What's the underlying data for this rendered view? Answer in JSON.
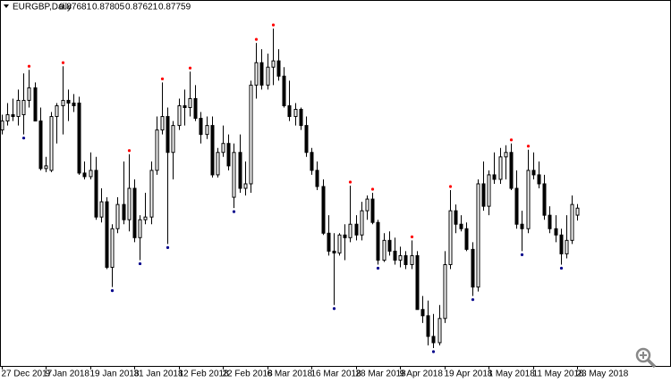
{
  "chart_data": {
    "type": "candlestick",
    "symbol": "EURGBP,Daily",
    "up_color": "#ffffff",
    "down_color": "#000000",
    "outline_color": "#000000",
    "fractals": true,
    "fractal_up_color": "#ff0000",
    "fractal_down_color": "#00008b",
    "categories": [
      "27 Dec 2017",
      null,
      null,
      null,
      null,
      null,
      null,
      null,
      "9 Jan 2018",
      null,
      null,
      null,
      null,
      null,
      null,
      null,
      "19 Jan 2018",
      null,
      null,
      null,
      null,
      null,
      null,
      null,
      "31 Jan 2018",
      null,
      null,
      null,
      null,
      null,
      null,
      null,
      "12 Feb 2018",
      null,
      null,
      null,
      null,
      null,
      null,
      null,
      "22 Feb 2018",
      null,
      null,
      null,
      null,
      null,
      null,
      null,
      "6 Mar 2018",
      null,
      null,
      null,
      null,
      null,
      null,
      null,
      "16 Mar 2018",
      null,
      null,
      null,
      null,
      null,
      null,
      null,
      "28 Mar 2018",
      null,
      null,
      null,
      null,
      null,
      null,
      null,
      "9 Apr 2018",
      null,
      null,
      null,
      null,
      null,
      null,
      null,
      "19 Apr 2018",
      null,
      null,
      null,
      null,
      null,
      null,
      null,
      "1 May 2018",
      null,
      null,
      null,
      null,
      null,
      null,
      null,
      "11 May 2018",
      null,
      null,
      null,
      null,
      null,
      null,
      null,
      "23 May 2018"
    ],
    "open": [
      0.8863,
      0.8873,
      0.888,
      0.8878,
      0.888,
      0.8896,
      0.891,
      0.8873,
      0.882,
      0.8818,
      0.8878,
      0.889,
      0.8896,
      0.8893,
      0.8893,
      0.8815,
      0.8811,
      0.8818,
      0.8766,
      0.8783,
      0.871,
      0.8753,
      0.878,
      0.8763,
      0.8798,
      0.8743,
      0.8763,
      0.8766,
      0.8818,
      0.8863,
      0.8878,
      0.8838,
      0.8868,
      0.889,
      0.8888,
      0.8898,
      0.8876,
      0.8858,
      0.8868,
      0.8813,
      0.8838,
      0.8848,
      0.8788,
      0.8838,
      0.8798,
      0.8803,
      0.8913,
      0.8938,
      0.8913,
      0.8933,
      0.894,
      0.8923,
      0.889,
      0.8878,
      0.8886,
      0.8868,
      0.8838,
      0.8818,
      0.88,
      0.8748,
      0.8728,
      0.8726,
      0.8746,
      0.8743,
      0.8758,
      0.8746,
      0.8773,
      0.8786,
      0.876,
      0.8718,
      0.874,
      0.8728,
      0.8718,
      0.8723,
      0.8713,
      0.8723,
      0.8663,
      0.8656,
      0.8633,
      0.8626,
      0.8653,
      0.8713,
      0.8773,
      0.8758,
      0.8753,
      0.873,
      0.8688,
      0.8803,
      0.8778,
      0.8813,
      0.8808,
      0.8833,
      0.8838,
      0.8798,
      0.8758,
      0.8753,
      0.8818,
      0.8813,
      0.8803,
      0.8768,
      0.8753,
      0.8746,
      0.8725,
      0.874,
      0.87681
    ],
    "high": [
      0.888,
      0.8893,
      0.8898,
      0.8908,
      0.8926,
      0.893,
      0.8916,
      0.8888,
      0.8833,
      0.8883,
      0.8893,
      0.8934,
      0.8908,
      0.8903,
      0.89,
      0.8828,
      0.8838,
      0.8833,
      0.8798,
      0.8788,
      0.8758,
      0.8788,
      0.8828,
      0.8836,
      0.8808,
      0.8768,
      0.8793,
      0.8828,
      0.8878,
      0.8916,
      0.8888,
      0.8873,
      0.8898,
      0.8908,
      0.8928,
      0.8913,
      0.8883,
      0.8878,
      0.8878,
      0.8843,
      0.8868,
      0.8858,
      0.8848,
      0.8858,
      0.8828,
      0.8918,
      0.896,
      0.8953,
      0.8948,
      0.8976,
      0.8953,
      0.8933,
      0.8918,
      0.8893,
      0.8888,
      0.8878,
      0.8843,
      0.8828,
      0.8808,
      0.8768,
      0.8748,
      0.8748,
      0.8758,
      0.8801,
      0.8768,
      0.8783,
      0.879,
      0.8793,
      0.8763,
      0.8748,
      0.875,
      0.8743,
      0.8733,
      0.8728,
      0.874,
      0.8728,
      0.8678,
      0.8673,
      0.8658,
      0.8668,
      0.8728,
      0.8796,
      0.878,
      0.8768,
      0.876,
      0.8738,
      0.8808,
      0.8828,
      0.8818,
      0.8838,
      0.8843,
      0.8846,
      0.8848,
      0.8818,
      0.8773,
      0.8841,
      0.8838,
      0.8828,
      0.8813,
      0.8778,
      0.8768,
      0.8753,
      0.8768,
      0.879,
      0.87805
    ],
    "low": [
      0.8858,
      0.8868,
      0.8873,
      0.8868,
      0.8858,
      0.8888,
      0.8873,
      0.8818,
      0.8816,
      0.8816,
      0.8848,
      0.8858,
      0.8873,
      0.8883,
      0.8813,
      0.8808,
      0.8808,
      0.8763,
      0.876,
      0.8708,
      0.8688,
      0.8748,
      0.8758,
      0.875,
      0.8738,
      0.8718,
      0.8758,
      0.8758,
      0.8813,
      0.8858,
      0.8736,
      0.8808,
      0.8863,
      0.8868,
      0.8878,
      0.8873,
      0.8848,
      0.8853,
      0.881,
      0.881,
      0.8833,
      0.8818,
      0.8776,
      0.8793,
      0.879,
      0.8793,
      0.8898,
      0.8908,
      0.8908,
      0.8913,
      0.8918,
      0.8888,
      0.8873,
      0.8868,
      0.8863,
      0.8833,
      0.8813,
      0.8796,
      0.8746,
      0.8723,
      0.8668,
      0.8723,
      0.8718,
      0.8738,
      0.874,
      0.874,
      0.8763,
      0.8758,
      0.8713,
      0.8716,
      0.8723,
      0.8713,
      0.871,
      0.8708,
      0.8708,
      0.8663,
      0.8648,
      0.8623,
      0.862,
      0.8623,
      0.8648,
      0.8708,
      0.8748,
      0.875,
      0.8728,
      0.8678,
      0.8683,
      0.8773,
      0.8768,
      0.8803,
      0.8803,
      0.8808,
      0.8796,
      0.8753,
      0.8728,
      0.8748,
      0.8808,
      0.8798,
      0.8763,
      0.8748,
      0.8738,
      0.8713,
      0.872,
      0.8736,
      0.87621
    ],
    "close": [
      0.8873,
      0.888,
      0.8878,
      0.8896,
      0.8896,
      0.891,
      0.8873,
      0.882,
      0.8823,
      0.8878,
      0.889,
      0.8896,
      0.8893,
      0.889,
      0.8815,
      0.8811,
      0.8818,
      0.8766,
      0.8783,
      0.871,
      0.8753,
      0.878,
      0.8763,
      0.8798,
      0.8743,
      0.8763,
      0.8766,
      0.8818,
      0.8863,
      0.8878,
      0.8838,
      0.8868,
      0.889,
      0.8888,
      0.8898,
      0.8876,
      0.8858,
      0.8868,
      0.8813,
      0.8838,
      0.8848,
      0.8823,
      0.8838,
      0.8798,
      0.8803,
      0.8913,
      0.8938,
      0.8913,
      0.8933,
      0.894,
      0.8923,
      0.889,
      0.8878,
      0.8886,
      0.8868,
      0.8838,
      0.8818,
      0.88,
      0.8748,
      0.8728,
      0.8726,
      0.8746,
      0.8743,
      0.8758,
      0.8746,
      0.8773,
      0.8786,
      0.876,
      0.8718,
      0.874,
      0.8728,
      0.8718,
      0.8723,
      0.8713,
      0.8723,
      0.8663,
      0.8656,
      0.8633,
      0.8626,
      0.8653,
      0.8713,
      0.8773,
      0.8758,
      0.8753,
      0.873,
      0.8688,
      0.8803,
      0.8778,
      0.8813,
      0.8808,
      0.8833,
      0.8838,
      0.8798,
      0.8758,
      0.8753,
      0.8818,
      0.8813,
      0.8803,
      0.8768,
      0.8753,
      0.8746,
      0.8725,
      0.874,
      0.878,
      0.87759
    ]
  }
}
